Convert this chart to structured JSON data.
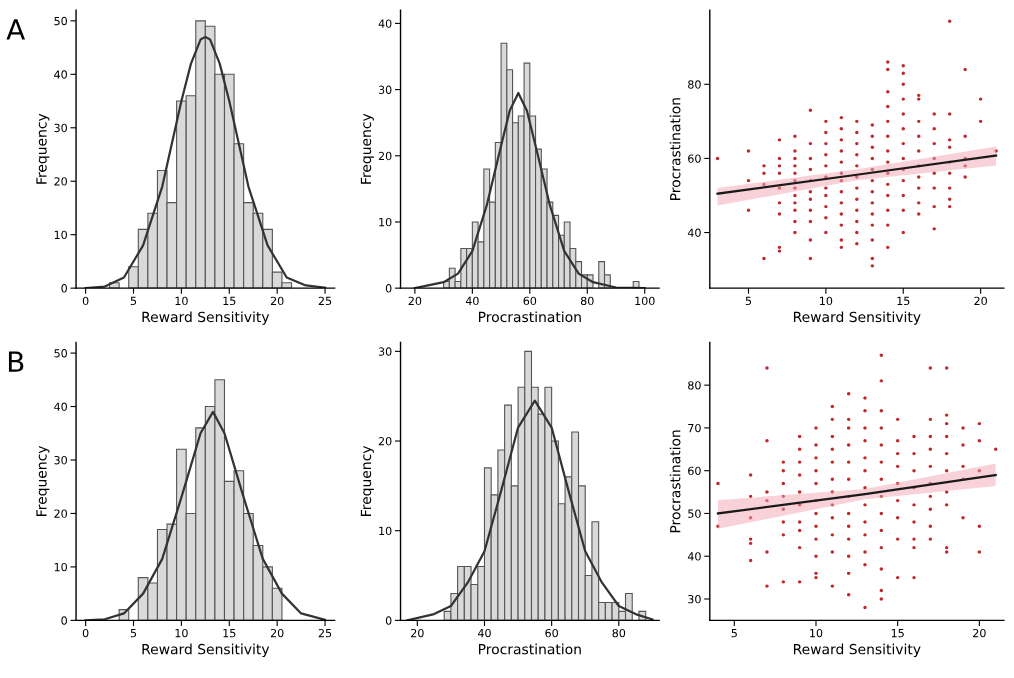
{
  "chart_data": [
    {
      "type": "histogram",
      "xlabel": "Reward Sensitivity",
      "ylabel": "Frequency",
      "annotations": [
        "A"
      ],
      "bins": [
        2.5,
        3.5,
        4.5,
        5.5,
        6.5,
        7.5,
        8.5,
        9.5,
        10.5,
        11.5,
        12.5,
        13.5,
        14.5,
        15.5,
        16.5,
        17.5,
        18.5,
        19.5,
        20.5,
        21.5
      ],
      "values": [
        1,
        0,
        4,
        11,
        14,
        22,
        16,
        35,
        36,
        50,
        49,
        40,
        40,
        27,
        16,
        14,
        11,
        3,
        1
      ],
      "color": "#d9d9d9",
      "xlim": [
        -1,
        26
      ],
      "ylim": [
        0,
        52
      ],
      "xticks": [
        0,
        5,
        10,
        15,
        20,
        25
      ],
      "yticks": [
        0,
        10,
        20,
        30,
        40,
        50
      ],
      "series": [
        {
          "type": "line",
          "color": "#333333",
          "x": [
            0,
            2,
            4,
            6,
            8,
            10,
            11,
            12,
            12.5,
            13,
            14,
            15,
            17,
            19,
            21,
            23,
            25
          ],
          "values": [
            0,
            0.3,
            2,
            8,
            19,
            35,
            42,
            46.5,
            47,
            46.5,
            42,
            35,
            19,
            8,
            2,
            0.5,
            0.1
          ]
        }
      ]
    },
    {
      "type": "histogram",
      "xlabel": "Procrastination",
      "ylabel": "Frequency",
      "bins": [
        30,
        32,
        34,
        36,
        38,
        40,
        42,
        44,
        46,
        48,
        50,
        52,
        54,
        56,
        58,
        60,
        62,
        64,
        66,
        68,
        70,
        72,
        74,
        76,
        78,
        80,
        82,
        84,
        86,
        88,
        90,
        92,
        94,
        96,
        98
      ],
      "values": [
        1,
        3,
        1,
        6,
        6,
        10,
        7,
        18,
        13,
        22,
        37,
        33,
        25,
        26,
        34,
        26,
        21,
        18,
        13,
        11,
        8,
        10,
        6,
        4,
        2,
        2,
        0,
        4,
        2,
        0,
        0,
        0,
        0,
        1
      ],
      "color": "#d9d9d9",
      "xlim": [
        15,
        105
      ],
      "ylim": [
        0,
        42
      ],
      "xticks": [
        20,
        40,
        60,
        80,
        100
      ],
      "yticks": [
        0,
        10,
        20,
        30,
        40
      ],
      "series": [
        {
          "type": "line",
          "color": "#333333",
          "x": [
            20,
            30,
            35,
            40,
            45,
            50,
            53,
            56,
            59,
            62,
            67,
            72,
            77,
            82,
            90,
            100
          ],
          "values": [
            0,
            0.9,
            2.2,
            5.6,
            12.5,
            21.5,
            26.8,
            29.5,
            26.8,
            21.5,
            12.5,
            5.6,
            2.2,
            0.9,
            0.1,
            0
          ]
        }
      ]
    },
    {
      "type": "scatter",
      "xlabel": "Reward Sensitivity",
      "ylabel": "Procrastination",
      "xlim": [
        2.5,
        21.5
      ],
      "ylim": [
        25,
        100
      ],
      "xticks": [
        5,
        10,
        15,
        20
      ],
      "yticks": [
        40,
        60,
        80
      ],
      "series": [
        {
          "type": "scatter",
          "marker": "circle",
          "color": "#c0282d",
          "x": [
            3,
            5,
            5,
            5,
            6,
            6,
            6,
            6,
            7,
            7,
            7,
            7,
            7,
            7,
            7,
            7,
            7,
            8,
            8,
            8,
            8,
            8,
            8,
            8,
            8,
            8,
            8,
            8,
            8,
            9,
            9,
            9,
            9,
            9,
            9,
            9,
            9,
            9,
            9,
            9,
            10,
            10,
            10,
            10,
            10,
            10,
            10,
            10,
            10,
            10,
            10,
            11,
            11,
            11,
            11,
            11,
            11,
            11,
            11,
            11,
            11,
            11,
            11,
            11,
            12,
            12,
            12,
            12,
            12,
            12,
            12,
            12,
            12,
            12,
            12,
            12,
            13,
            13,
            13,
            13,
            13,
            13,
            13,
            13,
            13,
            13,
            13,
            13,
            13,
            14,
            14,
            14,
            14,
            14,
            14,
            14,
            14,
            14,
            14,
            14,
            14,
            14,
            14,
            15,
            15,
            15,
            15,
            15,
            15,
            15,
            15,
            15,
            15,
            15,
            15,
            15,
            16,
            16,
            16,
            16,
            16,
            16,
            16,
            16,
            16,
            16,
            17,
            17,
            17,
            17,
            17,
            17,
            17,
            17,
            18,
            18,
            18,
            18,
            18,
            18,
            18,
            18,
            18,
            19,
            19,
            19,
            19,
            19,
            20,
            20,
            21
          ],
          "values": [
            60,
            62,
            54,
            46,
            58,
            56,
            53,
            33,
            65,
            60,
            58,
            56,
            52,
            48,
            45,
            36,
            35,
            66,
            62,
            60,
            58,
            56,
            54,
            52,
            50,
            48,
            46,
            43,
            40,
            73,
            64,
            60,
            57,
            54,
            51,
            49,
            46,
            43,
            38,
            33,
            70,
            67,
            64,
            61,
            58,
            55,
            52,
            50,
            47,
            44,
            40,
            71,
            68,
            65,
            62,
            59,
            56,
            54,
            51,
            48,
            45,
            42,
            38,
            36,
            70,
            67,
            64,
            61,
            58,
            55,
            52,
            49,
            46,
            43,
            40,
            37,
            69,
            66,
            63,
            60,
            57,
            54,
            51,
            48,
            45,
            42,
            38,
            33,
            31,
            86,
            84,
            78,
            74,
            70,
            66,
            62,
            59,
            56,
            53,
            50,
            46,
            42,
            36,
            85,
            83,
            80,
            76,
            72,
            68,
            64,
            60,
            57,
            54,
            50,
            46,
            40,
            77,
            76,
            70,
            66,
            62,
            58,
            55,
            52,
            48,
            45,
            72,
            68,
            64,
            60,
            56,
            52,
            47,
            41,
            97,
            72,
            65,
            63,
            59,
            56,
            52,
            49,
            47,
            84,
            66,
            60,
            58,
            55,
            76,
            70,
            62
          ]
        },
        {
          "type": "line",
          "color": "#1a1a1a",
          "x": [
            3,
            12,
            21
          ],
          "values": [
            50.5,
            55.6,
            60.8
          ],
          "lower": [
            47.3,
            54.1,
            58.1
          ],
          "upper": [
            52,
            57.1,
            63.2
          ]
        }
      ]
    },
    {
      "type": "histogram",
      "xlabel": "Reward Sensitivity",
      "ylabel": "Frequency",
      "annotations": [
        "B"
      ],
      "bins": [
        3.5,
        4.5,
        5.5,
        6.5,
        7.5,
        8.5,
        9.5,
        10.5,
        11.5,
        12.5,
        13.5,
        14.5,
        15.5,
        16.5,
        17.5,
        18.5,
        19.5,
        20.5
      ],
      "values": [
        2,
        0,
        8,
        7,
        17,
        18,
        32,
        20,
        36,
        40,
        45,
        26,
        28,
        20,
        14,
        10,
        6
      ],
      "color": "#d9d9d9",
      "xlim": [
        -1,
        26
      ],
      "ylim": [
        0,
        52
      ],
      "xticks": [
        0,
        5,
        10,
        15,
        20,
        25
      ],
      "yticks": [
        0,
        10,
        20,
        30,
        40,
        50
      ],
      "series": [
        {
          "type": "line",
          "color": "#333333",
          "x": [
            0,
            2,
            4,
            6,
            8,
            10,
            11,
            12,
            13.3,
            14.5,
            15.5,
            16.5,
            18.5,
            20.5,
            22.5,
            25
          ],
          "values": [
            0,
            0.2,
            1.3,
            5,
            11.5,
            23,
            29,
            35,
            39,
            35,
            29,
            23,
            11.5,
            5,
            1.3,
            0.1
          ]
        }
      ]
    },
    {
      "type": "histogram",
      "xlabel": "Procrastination",
      "ylabel": "Frequency",
      "bins": [
        28,
        30,
        32,
        34,
        36,
        38,
        40,
        42,
        44,
        46,
        48,
        50,
        52,
        54,
        56,
        58,
        60,
        62,
        64,
        66,
        68,
        70,
        72,
        74,
        76,
        78,
        80,
        82,
        84,
        86,
        88
      ],
      "values": [
        1,
        3,
        6,
        6,
        4,
        6,
        17,
        14,
        19,
        24,
        15,
        26,
        30,
        26,
        23,
        26,
        20,
        13,
        16,
        21,
        15,
        5,
        11,
        2,
        2,
        2,
        1,
        3,
        0,
        1
      ],
      "color": "#d9d9d9",
      "xlim": [
        15,
        92
      ],
      "ylim": [
        0,
        31
      ],
      "xticks": [
        20,
        40,
        60,
        80
      ],
      "yticks": [
        0,
        10,
        20,
        30
      ],
      "series": [
        {
          "type": "line",
          "color": "#333333",
          "x": [
            17,
            25,
            30,
            35,
            40,
            45,
            50,
            55,
            60,
            65,
            70,
            75,
            80,
            85,
            90
          ],
          "values": [
            0,
            0.7,
            1.6,
            4.2,
            7.7,
            14.5,
            21.5,
            24.5,
            21.5,
            14.5,
            7.7,
            4.2,
            1.6,
            0.7,
            0.1
          ]
        }
      ]
    },
    {
      "type": "scatter",
      "xlabel": "Reward Sensitivity",
      "ylabel": "Procrastination",
      "xlim": [
        3.5,
        21.5
      ],
      "ylim": [
        25,
        90
      ],
      "xticks": [
        5,
        10,
        15,
        20
      ],
      "yticks": [
        30,
        40,
        50,
        60,
        70,
        80
      ],
      "series": [
        {
          "type": "scatter",
          "marker": "circle",
          "color": "#c0282d",
          "x": [
            4,
            4,
            6,
            6,
            6,
            6,
            6,
            6,
            7,
            7,
            7,
            7,
            7,
            7,
            8,
            8,
            8,
            8,
            8,
            8,
            8,
            8,
            9,
            9,
            9,
            9,
            9,
            9,
            9,
            9,
            9,
            9,
            10,
            10,
            10,
            10,
            10,
            10,
            10,
            10,
            10,
            10,
            10,
            10,
            11,
            11,
            11,
            11,
            11,
            11,
            11,
            11,
            11,
            11,
            11,
            11,
            12,
            12,
            12,
            12,
            12,
            12,
            12,
            12,
            12,
            12,
            12,
            12,
            12,
            13,
            13,
            13,
            13,
            13,
            13,
            13,
            13,
            13,
            13,
            13,
            13,
            13,
            14,
            14,
            14,
            14,
            14,
            14,
            14,
            14,
            14,
            14,
            14,
            14,
            14,
            14,
            15,
            15,
            15,
            15,
            15,
            15,
            15,
            15,
            15,
            16,
            16,
            16,
            16,
            16,
            16,
            16,
            16,
            16,
            17,
            17,
            17,
            17,
            17,
            17,
            17,
            17,
            17,
            17,
            18,
            18,
            18,
            18,
            18,
            18,
            18,
            18,
            18,
            18,
            19,
            19,
            19,
            19,
            19,
            20,
            20,
            20,
            20,
            20,
            21
          ],
          "values": [
            57,
            47,
            59,
            54,
            49,
            44,
            43,
            39,
            84,
            67,
            55,
            53,
            41,
            33,
            62,
            60,
            57,
            54,
            51,
            48,
            45,
            34,
            68,
            65,
            62,
            59,
            55,
            52,
            48,
            46,
            42,
            34,
            70,
            66,
            63,
            60,
            57,
            53,
            50,
            47,
            44,
            40,
            36,
            35,
            75,
            72,
            68,
            65,
            62,
            58,
            55,
            52,
            49,
            45,
            41,
            33,
            78,
            72,
            70,
            66,
            62,
            58,
            54,
            50,
            47,
            44,
            40,
            36,
            31,
            77,
            74,
            70,
            67,
            63,
            60,
            56,
            52,
            48,
            45,
            41,
            38,
            28,
            87,
            81,
            74,
            70,
            66,
            62,
            58,
            54,
            50,
            46,
            42,
            37,
            32,
            30,
            72,
            67,
            64,
            61,
            57,
            53,
            49,
            44,
            35,
            68,
            64,
            60,
            56,
            52,
            48,
            44,
            42,
            35,
            84,
            72,
            68,
            65,
            61,
            57,
            54,
            51,
            47,
            44,
            84,
            73,
            71,
            68,
            64,
            60,
            55,
            52,
            42,
            41,
            70,
            66,
            61,
            58,
            49,
            71,
            67,
            60,
            47,
            41,
            65
          ]
        },
        {
          "type": "line",
          "color": "#1a1a1a",
          "x": [
            4,
            13,
            21
          ],
          "values": [
            50,
            54.5,
            59
          ],
          "lower": [
            46.4,
            53.3,
            56.4
          ],
          "upper": [
            53.1,
            55.7,
            61.7
          ]
        }
      ]
    }
  ]
}
